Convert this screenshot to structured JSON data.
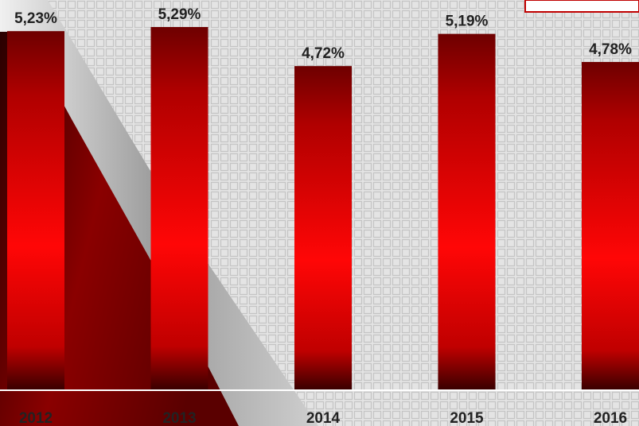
{
  "chart_data": {
    "type": "bar",
    "categories": [
      "2012",
      "2013",
      "2014",
      "2015",
      "2016"
    ],
    "values": [
      5.23,
      5.29,
      4.72,
      5.19,
      4.78
    ],
    "value_labels": [
      "5,23%",
      "5,29%",
      "4,72%",
      "5,19%",
      "4,78%"
    ],
    "color": "#ff0000"
  }
}
